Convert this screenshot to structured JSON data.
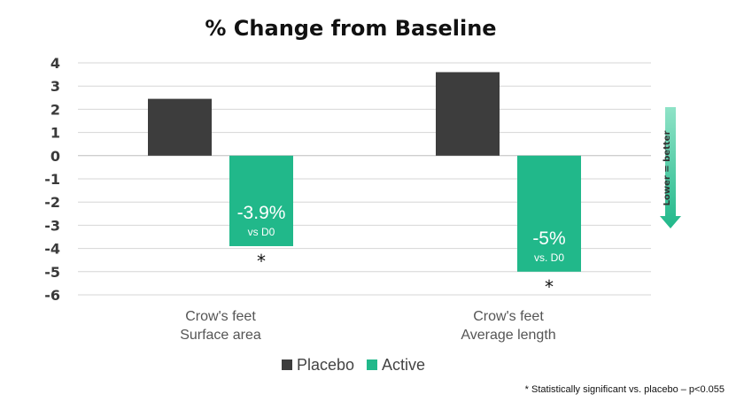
{
  "chart_data": {
    "type": "bar",
    "title": "% Change from Baseline",
    "categories": [
      [
        "Crow's feet",
        "Surface area"
      ],
      [
        "Crow's feet",
        "Average length"
      ]
    ],
    "series": [
      {
        "name": "Placebo",
        "values": [
          2.45,
          3.6
        ],
        "color": "#3d3d3d"
      },
      {
        "name": "Active",
        "values": [
          -3.9,
          -5.0
        ],
        "color": "#21b88a"
      }
    ],
    "yticks": [
      4,
      3,
      2,
      1,
      0,
      -1,
      -2,
      -3,
      -4,
      -5,
      -6
    ],
    "ylim": [
      -6,
      4
    ],
    "grid": true,
    "legend_position": "bottom-center",
    "data_labels": [
      {
        "big": "-3.9%",
        "small": "vs D0"
      },
      {
        "big": "-5%",
        "small": "vs. D0"
      }
    ],
    "significance_mark": "*",
    "direction_indicator": {
      "text": "Lower = better",
      "color": "#21b88a"
    },
    "footnote": "* Statistically significant vs. placebo – p<0.055"
  }
}
